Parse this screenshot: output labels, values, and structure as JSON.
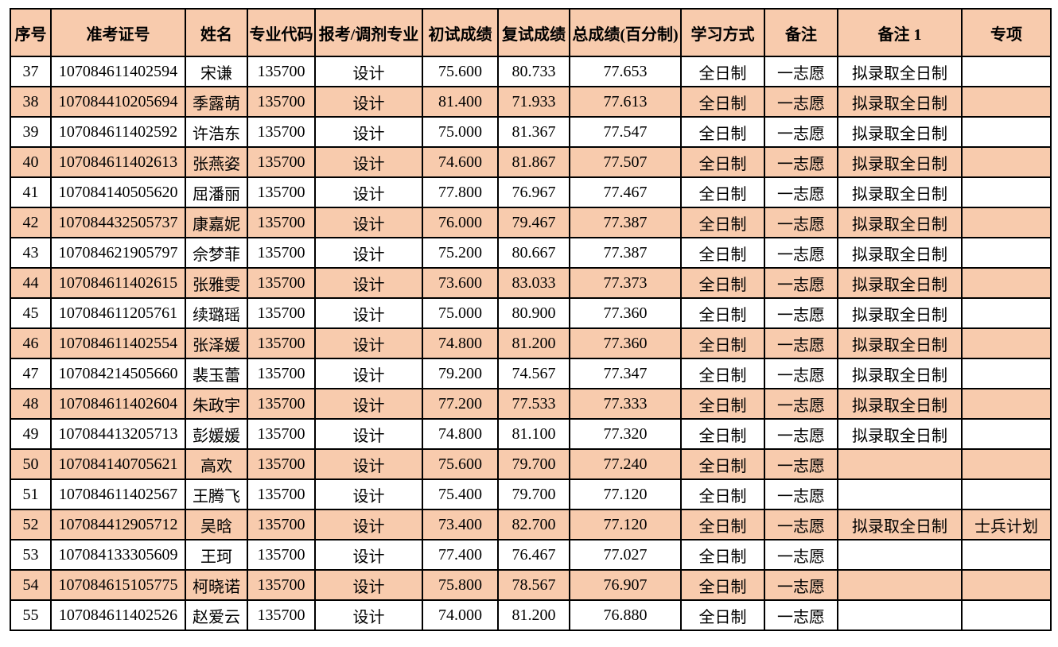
{
  "colors": {
    "stripe_row_background": "#F8CBAD",
    "border": "#000000",
    "text": "#000000",
    "page_background": "#FFFFFF"
  },
  "table": {
    "headers": [
      "序号",
      "准考证号",
      "姓名",
      "专业代码",
      "报考/调剂专业",
      "初试成绩",
      "复试成绩",
      "总成绩(百分制)",
      "学习方式",
      "备注",
      "备注 1",
      "专项"
    ],
    "rows": [
      [
        "37",
        "107084611402594",
        "宋谦",
        "135700",
        "设计",
        "75.600",
        "80.733",
        "77.653",
        "全日制",
        "一志愿",
        "拟录取全日制",
        ""
      ],
      [
        "38",
        "107084410205694",
        "季露萌",
        "135700",
        "设计",
        "81.400",
        "71.933",
        "77.613",
        "全日制",
        "一志愿",
        "拟录取全日制",
        ""
      ],
      [
        "39",
        "107084611402592",
        "许浩东",
        "135700",
        "设计",
        "75.000",
        "81.367",
        "77.547",
        "全日制",
        "一志愿",
        "拟录取全日制",
        ""
      ],
      [
        "40",
        "107084611402613",
        "张燕姿",
        "135700",
        "设计",
        "74.600",
        "81.867",
        "77.507",
        "全日制",
        "一志愿",
        "拟录取全日制",
        ""
      ],
      [
        "41",
        "107084140505620",
        "屈潘丽",
        "135700",
        "设计",
        "77.800",
        "76.967",
        "77.467",
        "全日制",
        "一志愿",
        "拟录取全日制",
        ""
      ],
      [
        "42",
        "107084432505737",
        "康嘉妮",
        "135700",
        "设计",
        "76.000",
        "79.467",
        "77.387",
        "全日制",
        "一志愿",
        "拟录取全日制",
        ""
      ],
      [
        "43",
        "107084621905797",
        "佘梦菲",
        "135700",
        "设计",
        "75.200",
        "80.667",
        "77.387",
        "全日制",
        "一志愿",
        "拟录取全日制",
        ""
      ],
      [
        "44",
        "107084611402615",
        "张雅雯",
        "135700",
        "设计",
        "73.600",
        "83.033",
        "77.373",
        "全日制",
        "一志愿",
        "拟录取全日制",
        ""
      ],
      [
        "45",
        "107084611205761",
        "续璐瑶",
        "135700",
        "设计",
        "75.000",
        "80.900",
        "77.360",
        "全日制",
        "一志愿",
        "拟录取全日制",
        ""
      ],
      [
        "46",
        "107084611402554",
        "张泽媛",
        "135700",
        "设计",
        "74.800",
        "81.200",
        "77.360",
        "全日制",
        "一志愿",
        "拟录取全日制",
        ""
      ],
      [
        "47",
        "107084214505660",
        "裴玉蕾",
        "135700",
        "设计",
        "79.200",
        "74.567",
        "77.347",
        "全日制",
        "一志愿",
        "拟录取全日制",
        ""
      ],
      [
        "48",
        "107084611402604",
        "朱政宇",
        "135700",
        "设计",
        "77.200",
        "77.533",
        "77.333",
        "全日制",
        "一志愿",
        "拟录取全日制",
        ""
      ],
      [
        "49",
        "107084413205713",
        "彭媛媛",
        "135700",
        "设计",
        "74.800",
        "81.100",
        "77.320",
        "全日制",
        "一志愿",
        "拟录取全日制",
        ""
      ],
      [
        "50",
        "107084140705621",
        "高欢",
        "135700",
        "设计",
        "75.600",
        "79.700",
        "77.240",
        "全日制",
        "一志愿",
        "",
        ""
      ],
      [
        "51",
        "107084611402567",
        "王腾飞",
        "135700",
        "设计",
        "75.400",
        "79.700",
        "77.120",
        "全日制",
        "一志愿",
        "",
        ""
      ],
      [
        "52",
        "107084412905712",
        "吴晗",
        "135700",
        "设计",
        "73.400",
        "82.700",
        "77.120",
        "全日制",
        "一志愿",
        "拟录取全日制",
        "士兵计划"
      ],
      [
        "53",
        "107084133305609",
        "王珂",
        "135700",
        "设计",
        "77.400",
        "76.467",
        "77.027",
        "全日制",
        "一志愿",
        "",
        ""
      ],
      [
        "54",
        "107084615105775",
        "柯晓诺",
        "135700",
        "设计",
        "75.800",
        "78.567",
        "76.907",
        "全日制",
        "一志愿",
        "",
        ""
      ],
      [
        "55",
        "107084611402526",
        "赵爱云",
        "135700",
        "设计",
        "74.000",
        "81.200",
        "76.880",
        "全日制",
        "一志愿",
        "",
        ""
      ]
    ]
  }
}
